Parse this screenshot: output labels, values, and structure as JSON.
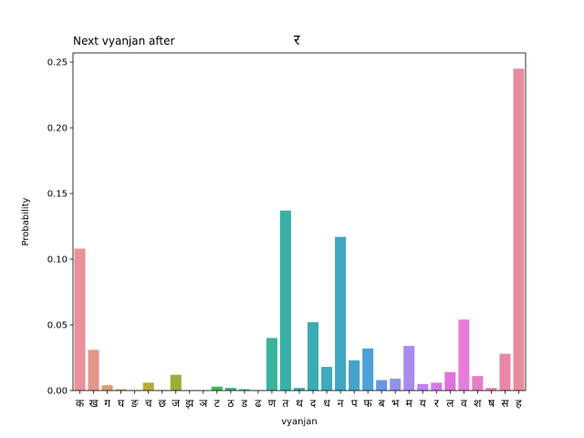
{
  "chart_data": {
    "type": "bar",
    "title": "Next vyanjan after",
    "title_char": "र",
    "xlabel": "vyanjan",
    "ylabel": "Probability",
    "ylim": [
      0,
      0.257
    ],
    "yticks": [
      0.0,
      0.05,
      0.1,
      0.15,
      0.2,
      0.25
    ],
    "ytick_labels": [
      "0.00",
      "0.05",
      "0.10",
      "0.15",
      "0.20",
      "0.25"
    ],
    "grid": false,
    "legend": "none",
    "categories": [
      "क",
      "ख",
      "ग",
      "घ",
      "ङ",
      "च",
      "छ",
      "ज",
      "झ",
      "ञ",
      "ट",
      "ठ",
      "ड",
      "ढ",
      "ण",
      "त",
      "थ",
      "द",
      "ध",
      "न",
      "प",
      "फ",
      "ब",
      "भ",
      "म",
      "य",
      "र",
      "ल",
      "व",
      "श",
      "ष",
      "स",
      "ह"
    ],
    "values": [
      0.108,
      0.031,
      0.004,
      0.001,
      0.0004,
      0.006,
      0.0004,
      0.012,
      0.0003,
      0.0002,
      0.003,
      0.002,
      0.001,
      0.0003,
      0.04,
      0.137,
      0.002,
      0.052,
      0.018,
      0.117,
      0.023,
      0.032,
      0.008,
      0.009,
      0.034,
      0.005,
      0.006,
      0.014,
      0.054,
      0.011,
      0.002,
      0.028,
      0.245
    ],
    "colors": [
      "#e8919a",
      "#e5968a",
      "#de9b72",
      "#d4a153",
      "#c8a53f",
      "#b9a93a",
      "#aaac39",
      "#98b03a",
      "#82b43b",
      "#62b841",
      "#3aba53",
      "#36b870",
      "#37b683",
      "#39b492",
      "#3ab39d",
      "#3aafa6",
      "#3caeac",
      "#3dabb2",
      "#3ea9b9",
      "#40a7c1",
      "#44a3cb",
      "#4da0d8",
      "#6699e4",
      "#8f92e6",
      "#a98bef",
      "#be83ee",
      "#d27bed",
      "#e26fe0",
      "#e77dd8",
      "#e47fc1",
      "#ea84b6",
      "#e987a8",
      "#e88c9f"
    ]
  }
}
